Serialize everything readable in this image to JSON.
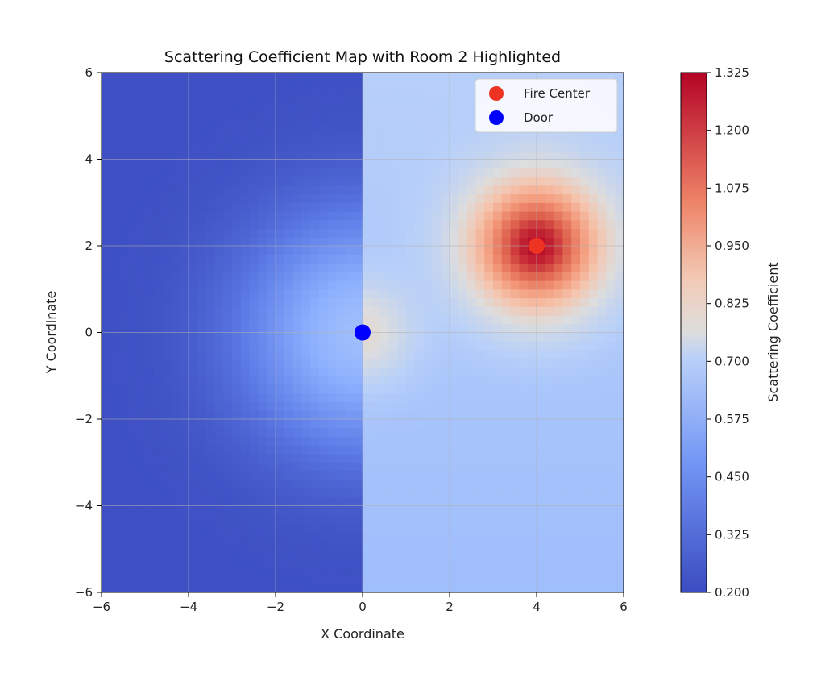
{
  "chart_data": {
    "type": "heatmap",
    "title": "Scattering Coefficient Map with Room 2 Highlighted",
    "xlabel": "X Coordinate",
    "ylabel": "Y Coordinate",
    "xlim": [
      -6,
      6
    ],
    "ylim": [
      -6,
      6
    ],
    "x_ticks": [
      -6,
      -4,
      -2,
      0,
      2,
      4,
      6
    ],
    "y_ticks": [
      -6,
      -4,
      -2,
      0,
      2,
      4,
      6
    ],
    "x_tick_labels": [
      "−6",
      "−4",
      "−2",
      "0",
      "2",
      "4",
      "6"
    ],
    "y_tick_labels": [
      "−6",
      "−4",
      "−2",
      "0",
      "2",
      "4",
      "6"
    ],
    "grid": true,
    "colormap": "coolwarm",
    "colorbar": {
      "label": "Scattering Coefficient",
      "min": 0.2,
      "max": 1.325,
      "ticks": [
        0.2,
        0.325,
        0.45,
        0.575,
        0.7,
        0.825,
        0.95,
        1.075,
        1.2,
        1.325
      ],
      "tick_labels": [
        "0.200",
        "0.325",
        "0.450",
        "0.575",
        "0.700",
        "0.825",
        "0.950",
        "1.075",
        "1.200",
        "1.325"
      ]
    },
    "field": {
      "room_boundary_x": 0,
      "left_region": "x < 0, low values (~0.2) increasing toward the door",
      "right_region": "x >= 0, values ~0.6 baseline rising to ~1.3 near fire center"
    },
    "points": [
      {
        "name": "Fire Center",
        "x": 4,
        "y": 2,
        "color": "#ee3322"
      },
      {
        "name": "Door",
        "x": 0,
        "y": 0,
        "color": "#0000ff"
      }
    ],
    "legend": {
      "position": "upper-right",
      "entries": [
        {
          "label": "Fire Center",
          "color": "#ee3322"
        },
        {
          "label": "Door",
          "color": "#0000ff"
        }
      ]
    }
  }
}
